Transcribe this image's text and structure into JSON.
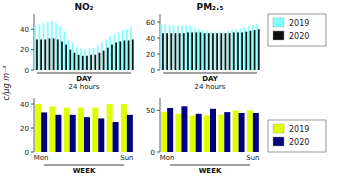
{
  "chart_data": [
    {
      "type": "bar",
      "title": "NO₂",
      "ylabel": "c/μg m⁻³",
      "categories": [
        null,
        null,
        null,
        null,
        null,
        null,
        null,
        null,
        null,
        null,
        null,
        null,
        null,
        null,
        null,
        null,
        null,
        null,
        null,
        null,
        null,
        null,
        null,
        null
      ],
      "series": [
        {
          "name": "2019",
          "color": "#7fffff",
          "values": [
            44,
            45,
            46,
            47,
            48,
            46,
            43,
            38,
            30,
            27,
            23,
            21,
            20,
            21,
            22,
            24,
            27,
            30,
            33,
            35,
            37,
            39,
            40,
            42
          ]
        },
        {
          "name": "2020",
          "color": "#111111",
          "values": [
            30,
            30,
            30,
            31,
            31,
            30,
            28,
            25,
            20,
            17,
            15,
            14,
            14,
            15,
            15,
            17,
            19,
            22,
            25,
            27,
            28,
            29,
            29,
            30
          ]
        }
      ],
      "ylim": [
        0,
        55
      ],
      "yticks": [
        0,
        20,
        40
      ],
      "legend": "right",
      "annotations": [
        "DAY",
        "24 hours"
      ]
    },
    {
      "type": "bar",
      "title": "PM₂.₅",
      "categories": [
        null,
        null,
        null,
        null,
        null,
        null,
        null,
        null,
        null,
        null,
        null,
        null,
        null,
        null,
        null,
        null,
        null,
        null,
        null,
        null,
        null,
        null,
        null,
        null
      ],
      "series": [
        {
          "color": "#7fffff",
          "values": [
            57,
            57,
            56,
            56,
            56,
            56,
            56,
            55,
            53,
            51,
            50,
            49,
            48,
            48,
            48,
            48,
            49,
            50,
            51,
            52,
            53,
            55,
            56,
            58
          ]
        },
        {
          "color": "#111111",
          "values": [
            46,
            46,
            46,
            46,
            46,
            46,
            47,
            47,
            47,
            47,
            46,
            46,
            46,
            46,
            46,
            46,
            46,
            47,
            47,
            47,
            48,
            49,
            50,
            51
          ]
        }
      ],
      "ylim": [
        0,
        70
      ],
      "yticks": [
        0,
        20,
        40,
        60
      ],
      "annotations": [
        "DAY",
        "24 hours"
      ]
    },
    {
      "type": "bar",
      "categories": [
        "Mon",
        null,
        null,
        null,
        null,
        null,
        "Sun"
      ],
      "series": [
        {
          "name": "2019",
          "color": "#ddff00",
          "values": [
            40,
            38,
            37,
            37,
            37,
            40,
            40
          ]
        },
        {
          "name": "2020",
          "color": "#000080",
          "values": [
            33,
            31,
            31,
            29,
            28,
            25,
            31
          ]
        }
      ],
      "ylim": [
        0,
        45
      ],
      "yticks": [
        0,
        20,
        40
      ],
      "legend": "right",
      "annotations": [
        "WEEK"
      ]
    },
    {
      "type": "bar",
      "categories": [
        "Mon",
        null,
        null,
        null,
        null,
        null,
        "Sun"
      ],
      "series": [
        {
          "color": "#ddff00",
          "values": [
            48,
            46,
            44,
            44,
            45,
            50,
            50
          ]
        },
        {
          "color": "#000080",
          "values": [
            53,
            55,
            46,
            52,
            48,
            47,
            47
          ]
        }
      ],
      "ylim": [
        0,
        65
      ],
      "yticks": [
        0,
        50
      ],
      "annotations": [
        "WEEK"
      ]
    }
  ]
}
